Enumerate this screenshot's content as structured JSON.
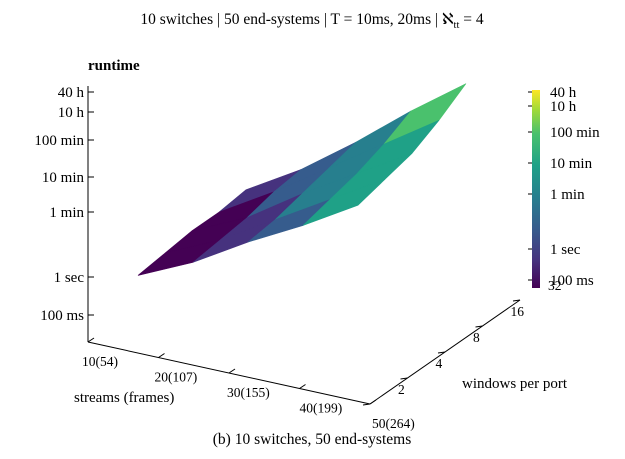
{
  "chart_data": {
    "type": "surface",
    "title": "10 switches | 50 end-systems | T = 10ms, 20ms | ℵ",
    "title_subscript": "tt",
    "title_suffix": " = 4",
    "caption": "(b)  10 switches, 50 end-systems",
    "zlabel": "runtime",
    "xlabel": "streams (frames)",
    "ylabel": "windows per port",
    "x_ticks": [
      "10(54)",
      "20(107)",
      "30(155)",
      "40(199)",
      "50(264)"
    ],
    "y_ticks": [
      "2",
      "4",
      "8",
      "16",
      "32"
    ],
    "z_ticks": [
      "40 h",
      "10 h",
      "100 min",
      "10 min",
      "1 min",
      "1 sec",
      "100 ms"
    ],
    "colorbar_ticks": [
      "40 h",
      "10 h",
      "100 min",
      "10 min",
      "1 min",
      "1 sec",
      "100 ms"
    ],
    "colors": [
      "#440154",
      "#46327e",
      "#365c8d",
      "#277f8e",
      "#1fa187",
      "#4ac16d",
      "#a0da39",
      "#fde725"
    ],
    "units": "log10 seconds",
    "z_log10_seconds": [
      [
        -0.6,
        0.1,
        1.0,
        1.8,
        2.7
      ],
      [
        -0.5,
        0.2,
        1.1,
        2.0,
        2.9
      ],
      [
        -0.4,
        0.3,
        1.3,
        2.2,
        3.1
      ],
      [
        -0.4,
        0.5,
        1.5,
        2.5,
        3.5
      ],
      [
        -0.3,
        0.6,
        1.7,
        2.9,
        4.0
      ]
    ]
  }
}
